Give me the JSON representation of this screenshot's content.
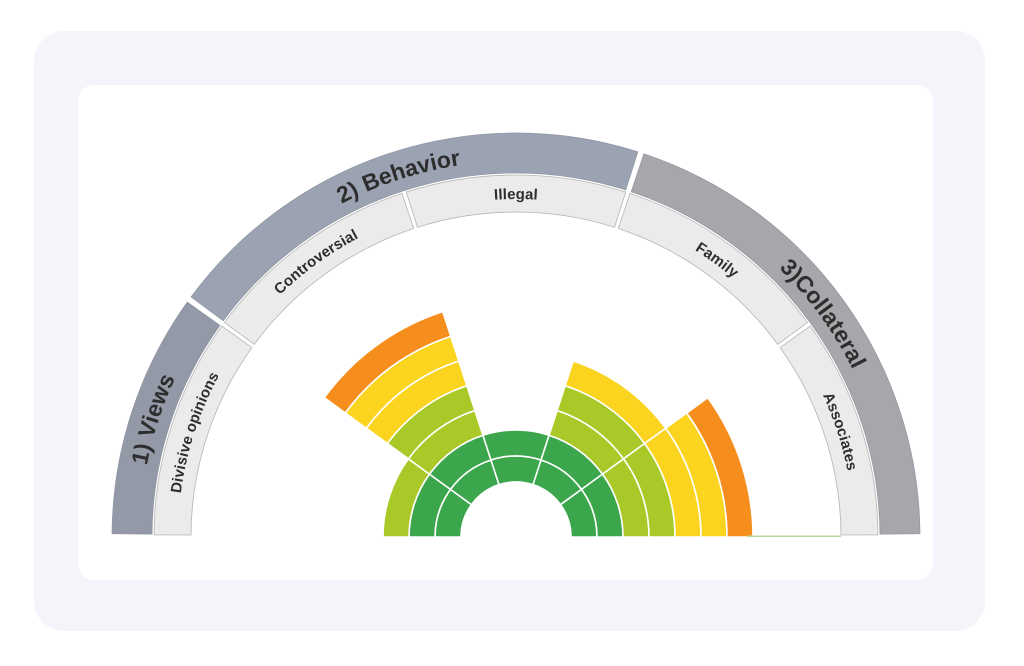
{
  "page": {
    "background_color": "#ffffff",
    "panel_color": "#f3f5fb",
    "card_color": "#ffffff"
  },
  "chart_data": {
    "type": "polar-gauge-rose",
    "orientation": "top-semicircle",
    "max_value": 7,
    "ring_colors": [
      "#3BA64C",
      "#3BA64C",
      "#A9C928",
      "#A9C928",
      "#FBD420",
      "#FBD420",
      "#F68E1E"
    ],
    "ring_separator_color": "#ffffff",
    "groups": [
      {
        "label": "1) Views",
        "start_angle": 144,
        "end_angle": 180,
        "color": "#9399a7"
      },
      {
        "label": "2) Behavior",
        "start_angle": 72,
        "end_angle": 144,
        "color": "#9ba3b2"
      },
      {
        "label": "3)Collateral",
        "start_angle": 0,
        "end_angle": 72,
        "color": "#a7a7ab"
      }
    ],
    "sectors": [
      {
        "label": "Divisive opinions",
        "group": "1) Views",
        "start_angle": 144,
        "end_angle": 180,
        "value": 3
      },
      {
        "label": "Controversial",
        "group": "2) Behavior",
        "start_angle": 108,
        "end_angle": 144,
        "value": 7
      },
      {
        "label": "Illegal",
        "group": "2) Behavior",
        "start_angle": 72,
        "end_angle": 108,
        "value": 2
      },
      {
        "label": "Family",
        "group": "3)Collateral",
        "start_angle": 36,
        "end_angle": 72,
        "value": 5
      },
      {
        "label": "Associates",
        "group": "3)Collateral",
        "start_angle": 0,
        "end_angle": 36,
        "value": 7
      }
    ],
    "sector_band_color": "#ebebeb",
    "sector_band_border_color": "#b5b5b5",
    "group_band_border_color": "#8e94a0",
    "label_color": "#2d2d2d",
    "axis_line_color": "#b9d9a0",
    "axis_line_side": "right",
    "legend_position": "none",
    "grid": "white ring and radial separators"
  }
}
